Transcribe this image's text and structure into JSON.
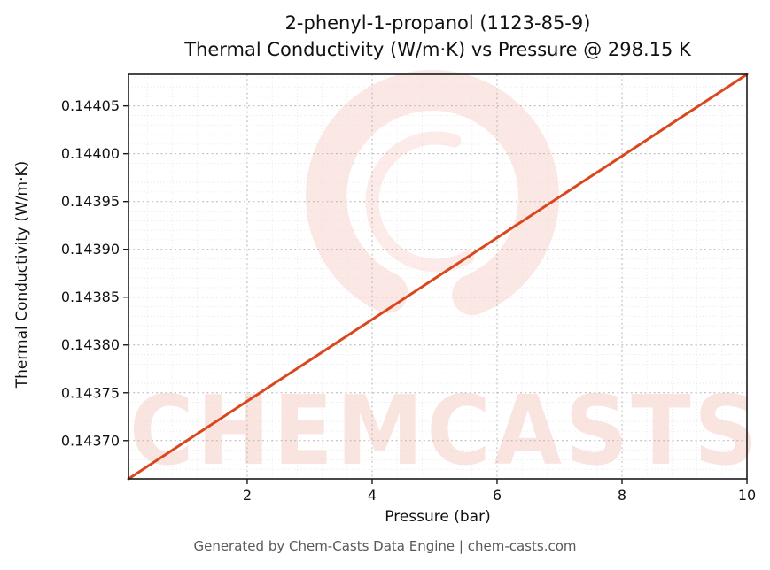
{
  "header": {
    "title_line1": "2-phenyl-1-propanol (1123-85-9)",
    "title_line2": "Thermal Conductivity (W/m·K) vs Pressure @ 298.15 K"
  },
  "footer": {
    "text": "Generated by Chem-Casts Data Engine | chem-casts.com"
  },
  "watermark": {
    "text": "CHEMCASTS",
    "logo": "chemcasts-brush-ring-logo",
    "color": "#e04a30"
  },
  "chart_data": {
    "type": "line",
    "title": "2-phenyl-1-propanol (1123-85-9) — Thermal Conductivity (W/m·K) vs Pressure @ 298.15 K",
    "xlabel": "Pressure (bar)",
    "ylabel": "Thermal Conductivity (W/m·K)",
    "x": [
      0.1,
      0.5,
      1.0,
      1.5,
      2.0,
      2.5,
      3.0,
      3.5,
      4.0,
      4.5,
      5.0,
      5.5,
      6.0,
      6.5,
      7.0,
      7.5,
      8.0,
      8.5,
      9.0,
      9.5,
      10.0
    ],
    "y": [
      0.14366,
      0.1436771,
      0.1436985,
      0.1437198,
      0.1437412,
      0.1437626,
      0.1437839,
      0.1438053,
      0.1438266,
      0.143848,
      0.1438694,
      0.1438907,
      0.1439121,
      0.1439335,
      0.1439548,
      0.1439762,
      0.1439975,
      0.1440189,
      0.1440403,
      0.1440616,
      0.144083
    ],
    "xlim": [
      0.1,
      10.0
    ],
    "ylim": [
      0.14366,
      0.144083
    ],
    "x_ticks": [
      2,
      4,
      6,
      8,
      10
    ],
    "y_ticks": [
      0.1437,
      0.14375,
      0.1438,
      0.14385,
      0.1439,
      0.14395,
      0.144,
      0.14405
    ],
    "x_minor_step": 0.4,
    "y_minor_step": 1e-05,
    "grid": true,
    "minor_grid": true,
    "legend": false,
    "line_color": "#d9481c",
    "line_width": 3
  }
}
